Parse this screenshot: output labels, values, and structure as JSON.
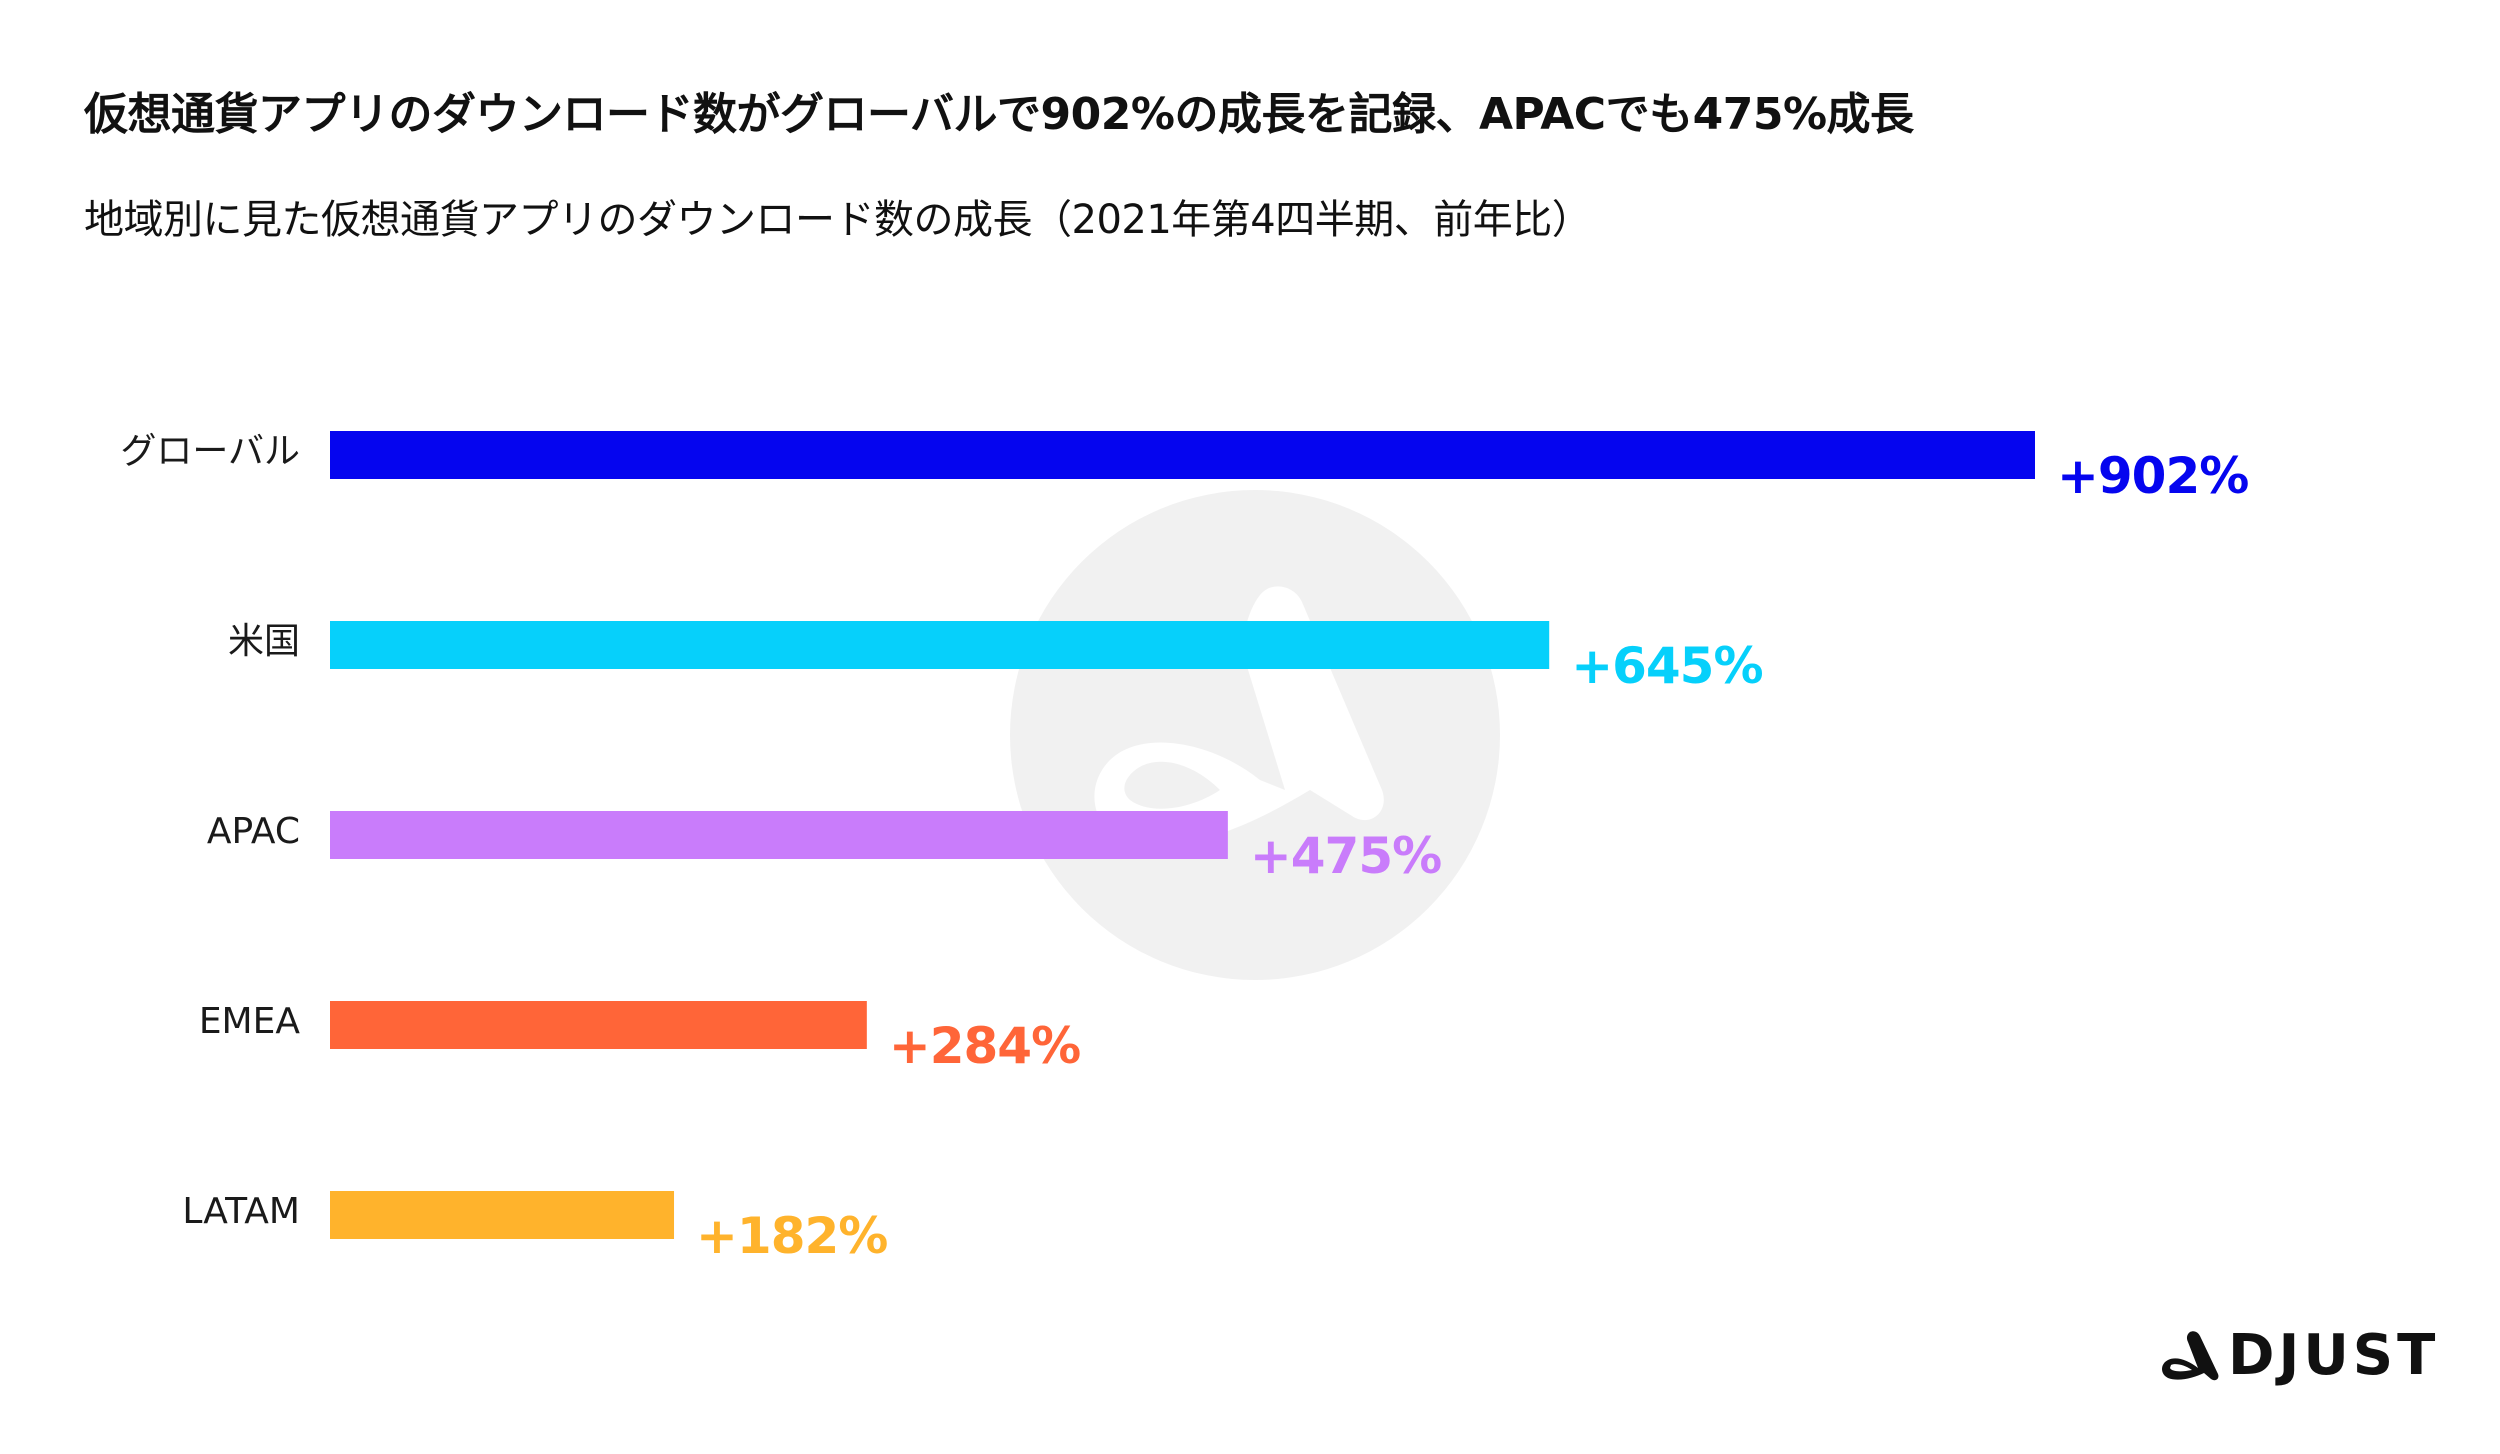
{
  "title": "仮想通貨アプリのダウンロード数がグローバルで902%の成長を記録、APACでも475%成長",
  "subtitle": "地域別に見た仮想通貨アプリのダウンロード数の成長（2021年第4四半期、前年比）",
  "chart_data": {
    "type": "bar",
    "orientation": "horizontal",
    "categories": [
      "グローバル",
      "米国",
      "APAC",
      "EMEA",
      "LATAM"
    ],
    "values": [
      902,
      645,
      475,
      284,
      182
    ],
    "value_labels": [
      "+902%",
      "+645%",
      "+475%",
      "+284%",
      "+182%"
    ],
    "colors": [
      "#0505ef",
      "#06d0fb",
      "#c97cfb",
      "#ff6538",
      "#ffb32c"
    ],
    "xlim": [
      0,
      902
    ],
    "xlabel": "",
    "ylabel": "",
    "grid": false,
    "legend": "none"
  },
  "logo": {
    "text": "DJUST",
    "icon": "adjust-logo-icon"
  },
  "watermark": {
    "icon": "adjust-watermark-icon"
  }
}
